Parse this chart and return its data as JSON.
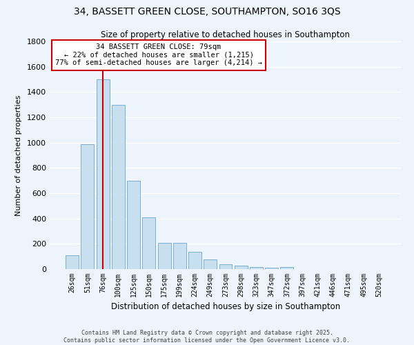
{
  "title": "34, BASSETT GREEN CLOSE, SOUTHAMPTON, SO16 3QS",
  "subtitle": "Size of property relative to detached houses in Southampton",
  "xlabel": "Distribution of detached houses by size in Southampton",
  "ylabel": "Number of detached properties",
  "bar_labels": [
    "26sqm",
    "51sqm",
    "76sqm",
    "100sqm",
    "125sqm",
    "150sqm",
    "175sqm",
    "199sqm",
    "224sqm",
    "249sqm",
    "273sqm",
    "298sqm",
    "323sqm",
    "347sqm",
    "372sqm",
    "397sqm",
    "421sqm",
    "446sqm",
    "471sqm",
    "495sqm",
    "520sqm"
  ],
  "bar_values": [
    110,
    990,
    1500,
    1300,
    700,
    410,
    210,
    210,
    135,
    75,
    40,
    25,
    15,
    10,
    15,
    0,
    0,
    0,
    0,
    0,
    0
  ],
  "bar_color": "#c8dff0",
  "bar_edge_color": "#7aafd4",
  "ylim": [
    0,
    1800
  ],
  "yticks": [
    0,
    200,
    400,
    600,
    800,
    1000,
    1200,
    1400,
    1600,
    1800
  ],
  "vline_x_index": 2,
  "vline_color": "#cc0000",
  "annotation_title": "34 BASSETT GREEN CLOSE: 79sqm",
  "annotation_line1": "← 22% of detached houses are smaller (1,215)",
  "annotation_line2": "77% of semi-detached houses are larger (4,214) →",
  "annotation_box_facecolor": "#ffffff",
  "annotation_box_edgecolor": "#cc0000",
  "footer_line1": "Contains HM Land Registry data © Crown copyright and database right 2025.",
  "footer_line2": "Contains public sector information licensed under the Open Government Licence v3.0.",
  "bg_color": "#eef4fb",
  "grid_color": "#ffffff"
}
